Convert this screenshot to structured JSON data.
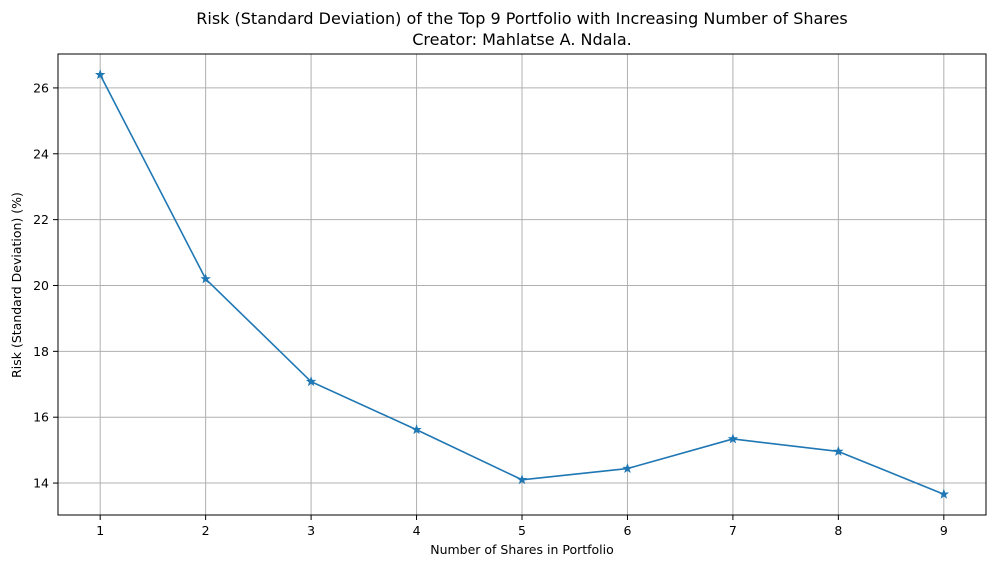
{
  "chart_data": {
    "type": "line",
    "title": "Risk (Standard Deviation) of the Top 9 Portfolio with Increasing Number of Shares",
    "subtitle": "Creator: Mahlatse A. Ndala.",
    "xlabel": "Number of Shares in Portfolio",
    "ylabel": "Risk (Standard Deviation) (%)",
    "x": [
      1,
      2,
      3,
      4,
      5,
      6,
      7,
      8,
      9
    ],
    "series": [
      {
        "values": [
          26.4,
          20.2,
          17.08,
          15.62,
          14.1,
          14.44,
          15.34,
          14.96,
          13.66
        ],
        "color": "#1f77b4",
        "marker": "star"
      }
    ],
    "x_ticks": [
      "1",
      "2",
      "3",
      "4",
      "5",
      "6",
      "7",
      "8",
      "9"
    ],
    "y_ticks": [
      "14",
      "16",
      "18",
      "20",
      "22",
      "24",
      "26"
    ],
    "xlim": [
      0.6,
      9.4
    ],
    "ylim": [
      13.03,
      27.03
    ],
    "grid": true
  }
}
